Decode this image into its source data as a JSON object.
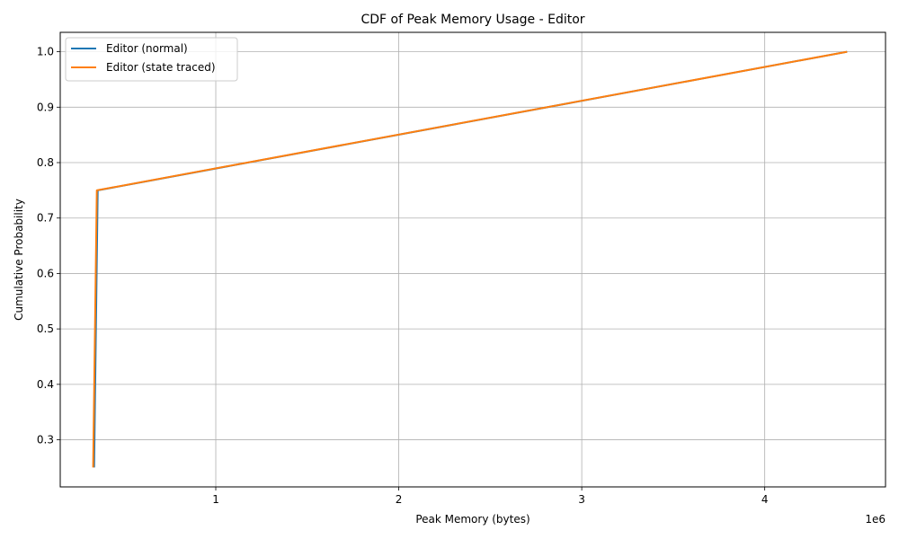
{
  "chart_data": {
    "type": "line",
    "title": "CDF of Peak Memory Usage - Editor",
    "xlabel": "Peak Memory (bytes)",
    "ylabel": "Cumulative Probability",
    "x_offset_label": "1e6",
    "xlim": [
      150000,
      4660000
    ],
    "ylim": [
      0.215,
      1.035
    ],
    "xticks": [
      1,
      2,
      3,
      4
    ],
    "xtick_values": [
      1000000,
      2000000,
      3000000,
      4000000
    ],
    "yticks": [
      0.3,
      0.4,
      0.5,
      0.6,
      0.7,
      0.8,
      0.9,
      1.0
    ],
    "ytick_labels": [
      "0.3",
      "0.4",
      "0.5",
      "0.6",
      "0.7",
      "0.8",
      "0.9",
      "1.0"
    ],
    "grid": true,
    "legend_position": "top-left",
    "series": [
      {
        "name": "Editor (normal)",
        "color": "#1f77b4",
        "x": [
          335000,
          355000,
          4450000
        ],
        "y": [
          0.25,
          0.75,
          1.0
        ]
      },
      {
        "name": "Editor (state traced)",
        "color": "#ff7f0e",
        "x": [
          330000,
          350000,
          4450000
        ],
        "y": [
          0.25,
          0.75,
          1.0
        ]
      }
    ]
  }
}
